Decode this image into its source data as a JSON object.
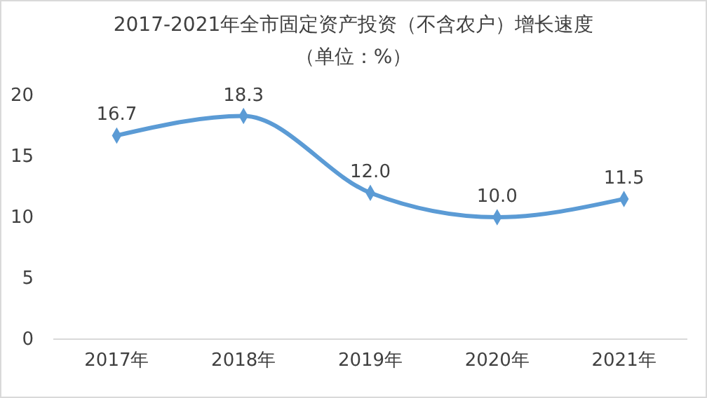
{
  "chart_data": {
    "type": "line",
    "title": "2017-2021年全市固定资产投资（不含农户）增长速度",
    "subtitle": "（单位：%）",
    "categories": [
      "2017年",
      "2018年",
      "2019年",
      "2020年",
      "2021年"
    ],
    "series": [
      {
        "color": "#5b9bd5",
        "values": [
          16.7,
          18.3,
          12.0,
          10.0,
          11.5
        ],
        "value_labels": [
          "16.7",
          "18.3",
          "12.0",
          "10.0",
          "11.5"
        ]
      }
    ],
    "ylim": [
      0,
      20
    ],
    "yticks": [
      0,
      5,
      10,
      15,
      20
    ],
    "grid": false,
    "marker": "diamond",
    "line_style": "solid"
  }
}
